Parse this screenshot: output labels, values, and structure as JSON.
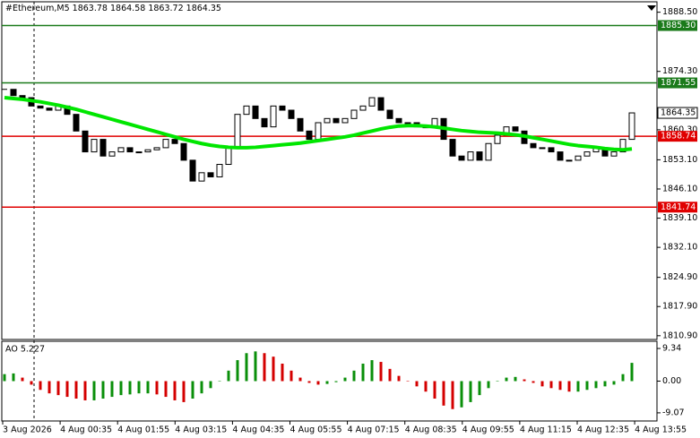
{
  "chart_data": [
    {
      "type": "candlestick",
      "title": "#Ethereum,M5",
      "header_values": [
        1863.78,
        1864.58,
        1863.72,
        1864.35
      ],
      "xlabels": [
        "3 Aug 2026",
        "4 Aug 00:35",
        "4 Aug 01:55",
        "4 Aug 03:15",
        "4 Aug 04:35",
        "4 Aug 05:55",
        "4 Aug 07:15",
        "4 Aug 08:35",
        "4 Aug 09:55",
        "4 Aug 11:15",
        "4 Aug 12:35",
        "4 Aug 13:55"
      ],
      "closes": [
        1870,
        1868.5,
        1868,
        1866,
        1865.5,
        1865,
        1866,
        1864,
        1860,
        1855,
        1858,
        1854,
        1855,
        1856,
        1855,
        1855,
        1855.5,
        1856,
        1858,
        1857,
        1853,
        1848,
        1850,
        1849,
        1852,
        1856,
        1864,
        1866,
        1863,
        1861,
        1866,
        1865,
        1863,
        1860,
        1858,
        1862,
        1863,
        1862,
        1863,
        1865,
        1866,
        1868,
        1865,
        1863,
        1862,
        1862,
        1861,
        1861,
        1863,
        1858,
        1854,
        1853,
        1855,
        1853,
        1857,
        1859,
        1861,
        1860,
        1857,
        1856,
        1856,
        1855,
        1853,
        1853,
        1854,
        1855,
        1856,
        1854,
        1855,
        1858,
        1864.35
      ],
      "ma": {
        "color": "#00e600",
        "values": [
          1868,
          1867.8,
          1867.6,
          1867.3,
          1867,
          1866.6,
          1866.2,
          1865.7,
          1865.2,
          1864.6,
          1864,
          1863.4,
          1862.8,
          1862.2,
          1861.6,
          1861,
          1860.4,
          1859.8,
          1859.2,
          1858.6,
          1858,
          1857.5,
          1857,
          1856.6,
          1856.3,
          1856.1,
          1856,
          1856,
          1856.1,
          1856.3,
          1856.5,
          1856.7,
          1856.9,
          1857.1,
          1857.4,
          1857.7,
          1858,
          1858.3,
          1858.6,
          1859,
          1859.5,
          1860,
          1860.5,
          1860.9,
          1861.2,
          1861.3,
          1861.3,
          1861.2,
          1861,
          1860.7,
          1860.4,
          1860.1,
          1859.9,
          1859.7,
          1859.6,
          1859.5,
          1859.3,
          1859.1,
          1858.8,
          1858.4,
          1858,
          1857.6,
          1857.2,
          1856.8,
          1856.5,
          1856.3,
          1856.1,
          1855.8,
          1855.6,
          1855.5,
          1855.7
        ]
      },
      "levels": [
        {
          "value": 1885.3,
          "label": "1885.30",
          "color": "#1a7a1a"
        },
        {
          "value": 1871.55,
          "color": "#1a7a1a"
        },
        {
          "value": 1858.74,
          "color": "#e00000"
        },
        {
          "value": 1841.74,
          "color": "#e00000"
        }
      ],
      "ylim": [
        1810,
        1891
      ],
      "yticks": [
        {
          "value": 1888.5,
          "label": "1888.50"
        },
        {
          "value": 1874.3,
          "label": "1874.30"
        },
        {
          "value": 1860.3,
          "label": "1860.30"
        },
        {
          "value": 1853.1,
          "label": "1853.10"
        },
        {
          "value": 1846.1,
          "label": "1846.10"
        },
        {
          "value": 1839.1,
          "label": "1839.10"
        },
        {
          "value": 1832.1,
          "label": "1832.10"
        },
        {
          "value": 1824.9,
          "label": "1824.90"
        },
        {
          "value": 1817.9,
          "label": "1817.90"
        },
        {
          "value": 1810.9,
          "label": "1810.90"
        }
      ]
    },
    {
      "type": "bar",
      "title": "AO 5.227",
      "up_color": "#0a8f0a",
      "down_color": "#d40000",
      "values": [
        2,
        2.2,
        1,
        -1,
        -2.5,
        -3.5,
        -4,
        -4.5,
        -5,
        -5.5,
        -5.5,
        -5,
        -4.5,
        -4,
        -3.8,
        -3.5,
        -3.5,
        -3.8,
        -4.5,
        -5.5,
        -6,
        -5,
        -3.5,
        -2,
        0,
        3,
        6,
        8,
        8.5,
        8,
        7,
        5,
        3,
        1,
        -0.5,
        -1,
        -0.8,
        -0.3,
        1,
        3,
        5,
        6,
        5.5,
        3.5,
        1.5,
        0,
        -1.5,
        -3,
        -5,
        -7,
        -8,
        -7.5,
        -6,
        -4,
        -2,
        0,
        1,
        1.2,
        0.5,
        -0.5,
        -1.5,
        -2,
        -2.5,
        -3,
        -3,
        -2.5,
        -2,
        -1.5,
        -1,
        2,
        5.227
      ],
      "ylim": [
        -11.4,
        11.4
      ],
      "yticks": [
        9.34,
        {
          "value": 0,
          "label": "0.00"
        },
        -9.07
      ]
    }
  ]
}
